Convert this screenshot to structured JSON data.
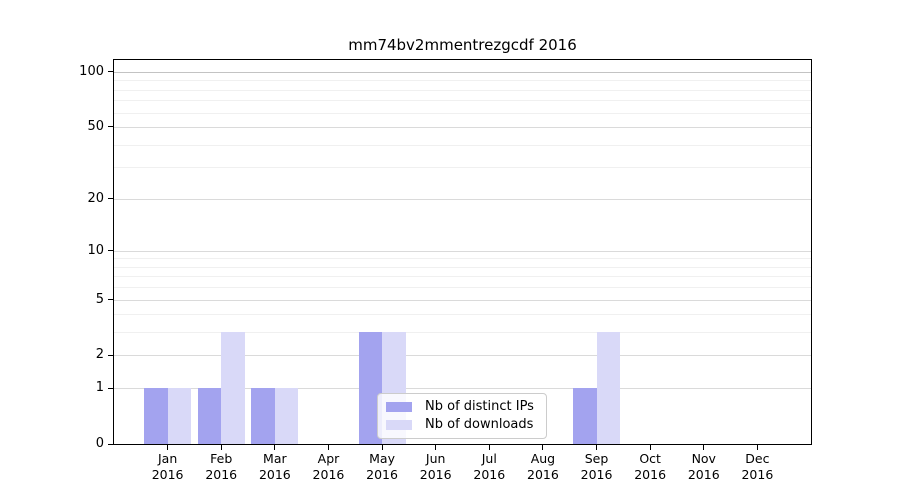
{
  "chart_data": {
    "type": "bar",
    "title": "mm74bv2mmentrezgcdf 2016",
    "categories": [
      "Jan 2016",
      "Feb 2016",
      "Mar 2016",
      "Apr 2016",
      "May 2016",
      "Jun 2016",
      "Jul 2016",
      "Aug 2016",
      "Sep 2016",
      "Oct 2016",
      "Nov 2016",
      "Dec 2016"
    ],
    "series": [
      {
        "name": "Nb of distinct IPs",
        "color": "#a3a3ef",
        "values": [
          1,
          1,
          1,
          0,
          3,
          0,
          0,
          0,
          1,
          0,
          0,
          0
        ]
      },
      {
        "name": "Nb of downloads",
        "color": "#d9d9f8",
        "values": [
          1,
          3,
          1,
          0,
          3,
          0,
          0,
          0,
          3,
          0,
          0,
          0
        ]
      }
    ],
    "xlabel": "",
    "ylabel": "",
    "yscale": "log1p",
    "ylim": [
      0,
      116
    ],
    "yticks": [
      0,
      1,
      2,
      5,
      10,
      20,
      50,
      100
    ],
    "yticks_minor": [
      3,
      4,
      6,
      7,
      8,
      9,
      30,
      40,
      60,
      70,
      80,
      90
    ],
    "grid": true,
    "legend_position": "lower center"
  },
  "colors": {
    "grid_major": "#dadada",
    "grid_minor": "#f0f0f0",
    "grid_hundred": "#c3c3c3",
    "spine": "#000000",
    "background": "#ffffff"
  }
}
